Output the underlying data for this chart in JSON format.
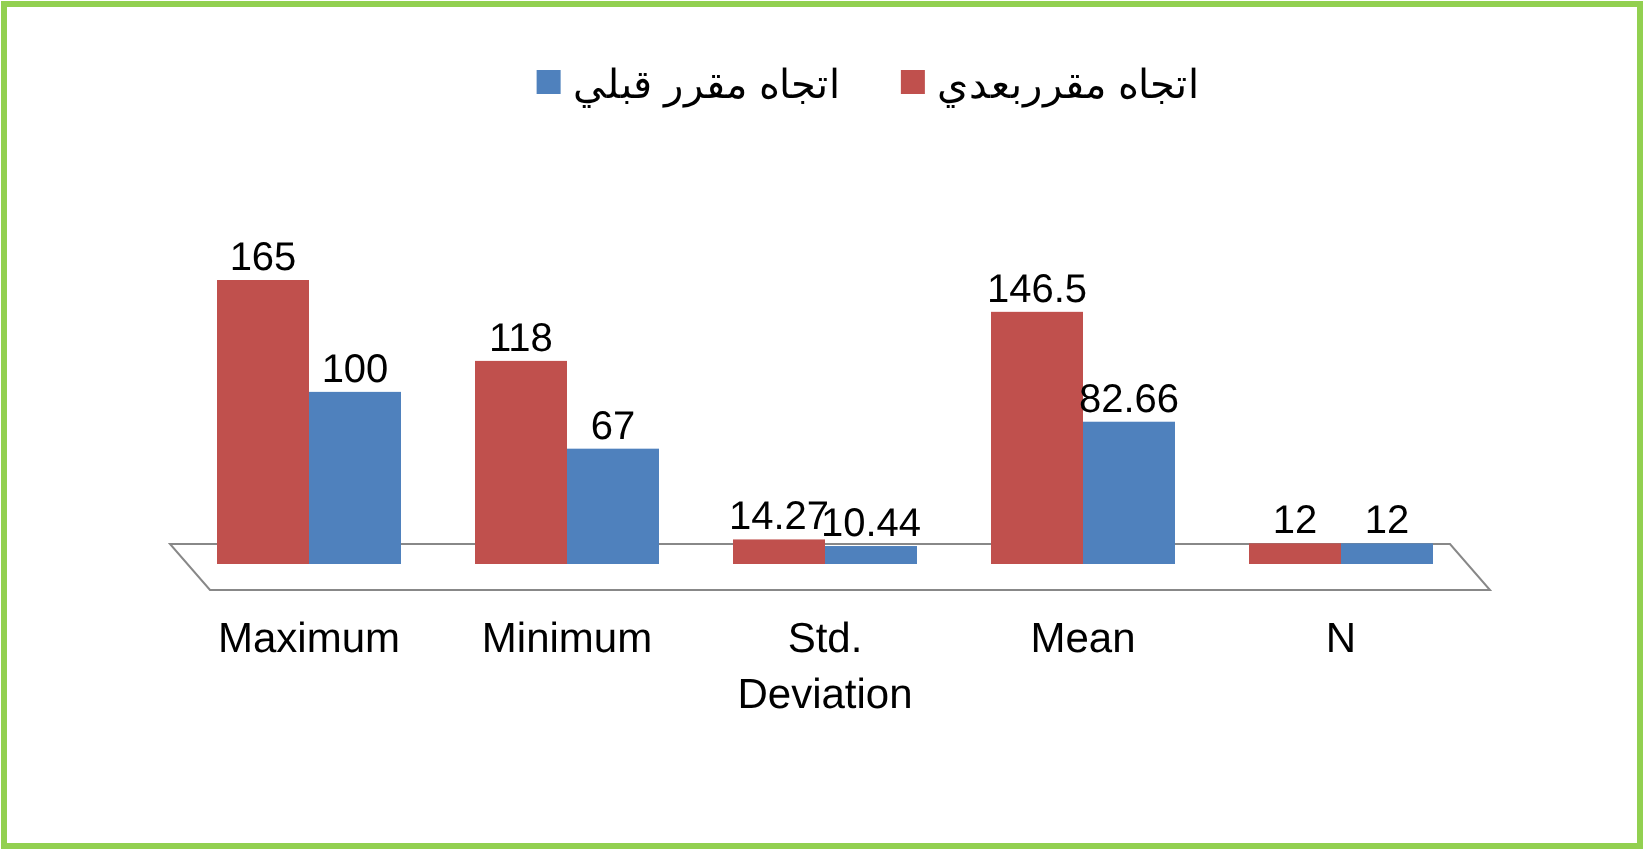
{
  "chart_data": {
    "type": "bar",
    "categories": [
      "Maximum",
      "Minimum",
      "Std. Deviation",
      "Mean",
      "N"
    ],
    "series": [
      {
        "name": "اتجاه مقرربعدي",
        "color": "#c0504d",
        "values": [
          165,
          118,
          14.27,
          146.5,
          12
        ]
      },
      {
        "name": "اتجاه مقرر قبلي",
        "color": "#4f81bd",
        "values": [
          100,
          67,
          10.44,
          82.66,
          12
        ]
      }
    ],
    "data_labels": true,
    "legend": "top",
    "grid": false
  }
}
